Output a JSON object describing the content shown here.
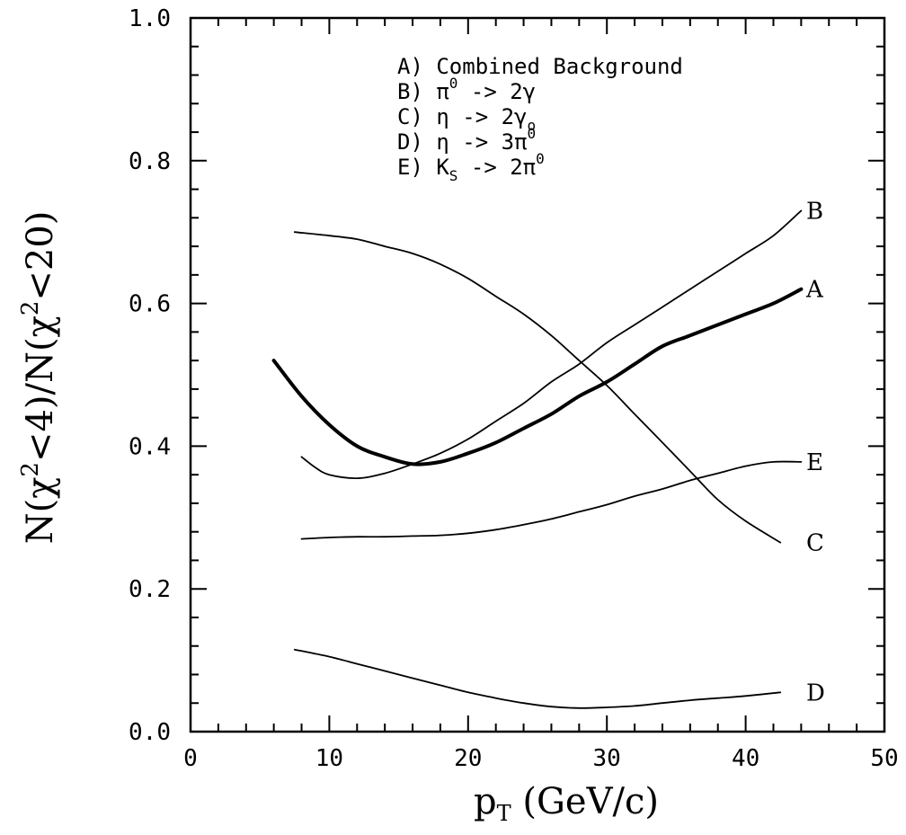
{
  "chart_data": {
    "type": "line",
    "title": "",
    "xlabel": {
      "main": "p",
      "sub": "T",
      "rest": " (GeV/c)"
    },
    "ylabel": {
      "n1": "N(χ",
      "sup1": "2",
      "mid": "<4)/N(χ",
      "sup2": "2",
      "end": "<20)"
    },
    "xlim": [
      0,
      50
    ],
    "ylim": [
      0,
      1.0
    ],
    "x_ticks": [
      "0",
      "10",
      "20",
      "30",
      "40",
      "50"
    ],
    "y_ticks": [
      "0.0",
      "0.2",
      "0.4",
      "0.6",
      "0.8",
      "1.0"
    ],
    "grid": false,
    "legend_position": "top-center",
    "legend": [
      {
        "id": "A",
        "prefix": "A) ",
        "text": "Combined Background"
      },
      {
        "id": "B",
        "prefix": "B) ",
        "text": "π",
        "sup": "0",
        "tail": " -> 2γ"
      },
      {
        "id": "C",
        "prefix": "C) ",
        "text": "η -> 2γ",
        "sub": "o"
      },
      {
        "id": "D",
        "prefix": "D) ",
        "text": "η -> 3π",
        "sup": "0"
      },
      {
        "id": "E",
        "prefix": "E) ",
        "text": "K",
        "sub": "S",
        "tail": " -> 2π",
        "sup": "0"
      }
    ],
    "series": [
      {
        "id": "A",
        "label": "A",
        "bold": true,
        "x": [
          6,
          8,
          10,
          12,
          14,
          16,
          18,
          20,
          22,
          24,
          26,
          28,
          30,
          32,
          34,
          36,
          38,
          40,
          42,
          44
        ],
        "y": [
          0.52,
          0.47,
          0.43,
          0.4,
          0.385,
          0.375,
          0.378,
          0.39,
          0.405,
          0.425,
          0.445,
          0.47,
          0.49,
          0.515,
          0.54,
          0.555,
          0.57,
          0.585,
          0.6,
          0.62
        ]
      },
      {
        "id": "B",
        "label": "B",
        "bold": false,
        "x": [
          8,
          9,
          10,
          12,
          14,
          16,
          18,
          20,
          22,
          24,
          26,
          28,
          30,
          32,
          34,
          36,
          38,
          40,
          42,
          44
        ],
        "y": [
          0.385,
          0.37,
          0.36,
          0.355,
          0.362,
          0.375,
          0.39,
          0.41,
          0.435,
          0.46,
          0.49,
          0.515,
          0.545,
          0.57,
          0.595,
          0.62,
          0.645,
          0.67,
          0.695,
          0.73
        ]
      },
      {
        "id": "C",
        "label": "C",
        "bold": false,
        "x": [
          7.5,
          10,
          12,
          14,
          16,
          18,
          20,
          22,
          24,
          26,
          28,
          30,
          32,
          34,
          36,
          38,
          40,
          42.5
        ],
        "y": [
          0.7,
          0.695,
          0.69,
          0.68,
          0.67,
          0.655,
          0.635,
          0.61,
          0.585,
          0.555,
          0.52,
          0.485,
          0.445,
          0.405,
          0.365,
          0.325,
          0.295,
          0.265
        ]
      },
      {
        "id": "D",
        "label": "D",
        "bold": false,
        "x": [
          7.5,
          10,
          12,
          14,
          16,
          18,
          20,
          22,
          24,
          26,
          28,
          30,
          32,
          34,
          36,
          38,
          40,
          42.5
        ],
        "y": [
          0.115,
          0.105,
          0.095,
          0.085,
          0.075,
          0.065,
          0.055,
          0.047,
          0.04,
          0.035,
          0.033,
          0.034,
          0.036,
          0.04,
          0.044,
          0.047,
          0.05,
          0.055
        ]
      },
      {
        "id": "E",
        "label": "E",
        "bold": false,
        "x": [
          8,
          10,
          12,
          14,
          16,
          18,
          20,
          22,
          24,
          26,
          28,
          30,
          32,
          34,
          36,
          38,
          40,
          42,
          44
        ],
        "y": [
          0.27,
          0.272,
          0.273,
          0.273,
          0.274,
          0.275,
          0.278,
          0.283,
          0.29,
          0.298,
          0.308,
          0.318,
          0.33,
          0.34,
          0.352,
          0.362,
          0.372,
          0.378,
          0.378
        ]
      }
    ]
  }
}
